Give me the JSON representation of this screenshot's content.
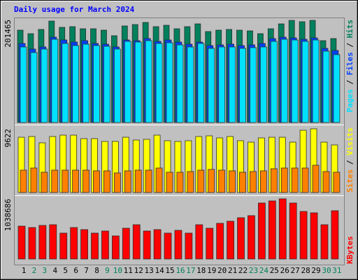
{
  "title": "Daily usage for March 2024",
  "legend_separator": " / ",
  "categories": [
    "1",
    "2",
    "3",
    "4",
    "5",
    "6",
    "7",
    "8",
    "9",
    "10",
    "11",
    "12",
    "13",
    "14",
    "15",
    "16",
    "17",
    "18",
    "19",
    "20",
    "21",
    "22",
    "23",
    "24",
    "25",
    "26",
    "27",
    "28",
    "29",
    "30",
    "31"
  ],
  "category_label_colors": [
    "#000000",
    "#00805c",
    "#00805c",
    "#000000",
    "#000000",
    "#000000",
    "#000000",
    "#000000",
    "#00805c",
    "#00805c",
    "#000000",
    "#000000",
    "#000000",
    "#000000",
    "#000000",
    "#00805c",
    "#00805c",
    "#000000",
    "#000000",
    "#000000",
    "#000000",
    "#000000",
    "#00805c",
    "#00805c",
    "#000000",
    "#000000",
    "#000000",
    "#000000",
    "#000000",
    "#00805c",
    "#00805c"
  ],
  "chart_data": [
    {
      "type": "bar",
      "ylim": [
        0,
        201465
      ],
      "yticks": [
        201465
      ],
      "series": [
        {
          "name": "Pages",
          "color": "#00e0ff",
          "values": [
            147960,
            137000,
            143850,
            163030,
            154810,
            150700,
            153440,
            150700,
            149330,
            143850,
            158920,
            157550,
            160290,
            154810,
            156180,
            152070,
            147960,
            154810,
            145220,
            147960,
            147960,
            145220,
            146590,
            147960,
            158920,
            163030,
            161660,
            158920,
            161660,
            139740,
            132890
          ]
        },
        {
          "name": "Files",
          "color": "#0040ff",
          "values": [
            154810,
            143850,
            147960,
            167140,
            161660,
            157550,
            160290,
            154810,
            153440,
            147960,
            161660,
            160290,
            164400,
            158920,
            161660,
            157550,
            153440,
            157550,
            150700,
            152070,
            153440,
            150700,
            152070,
            154810,
            164400,
            167140,
            165770,
            163030,
            165770,
            145220,
            141110
          ]
        },
        {
          "name": "Hits",
          "color": "#00805c",
          "values": [
            180840,
            173990,
            182210,
            198650,
            186320,
            187690,
            183580,
            183580,
            180840,
            169880,
            189060,
            191800,
            195910,
            187690,
            190430,
            183580,
            187690,
            193170,
            178100,
            180840,
            182210,
            180840,
            179470,
            173990,
            183580,
            193170,
            200020,
            197280,
            200020,
            160290,
            164400
          ]
        }
      ]
    },
    {
      "type": "bar",
      "ylim": [
        0,
        9622
      ],
      "yticks": [
        9622
      ],
      "series": [
        {
          "name": "Sites",
          "color": "#ff8000",
          "values": [
            3382,
            3700,
            3065,
            3382,
            3382,
            3382,
            3382,
            3277,
            3277,
            2960,
            3277,
            3382,
            3382,
            3700,
            3065,
            3065,
            3171,
            3382,
            3488,
            3382,
            3277,
            3065,
            3171,
            3277,
            3594,
            3700,
            3700,
            3700,
            4122,
            3171,
            3065
          ]
        },
        {
          "name": "Visits",
          "color": "#ffff00",
          "values": [
            8350,
            8456,
            7505,
            8456,
            8667,
            8667,
            8139,
            8139,
            7716,
            7716,
            8350,
            7928,
            8033,
            8667,
            7822,
            7716,
            7822,
            8456,
            8562,
            8245,
            8456,
            7822,
            7610,
            8245,
            8350,
            8350,
            7610,
            9407,
            9622,
            7610,
            7188
          ]
        }
      ]
    },
    {
      "type": "bar",
      "ylim": [
        0,
        1038686
      ],
      "yticks": [
        1038686
      ],
      "series": [
        {
          "name": "KBytes",
          "color": "#ff0000",
          "values": [
            567666,
            543510,
            579744,
            591822,
            446886,
            543510,
            507276,
            446886,
            483120,
            398574,
            531432,
            591822,
            483120,
            507276,
            446886,
            495198,
            446886,
            591822,
            531432,
            615978,
            652212,
            712602,
            748836,
            966240,
            1002474,
            1038686,
            966240,
            821304,
            797148,
            591822,
            833382
          ]
        }
      ]
    }
  ]
}
